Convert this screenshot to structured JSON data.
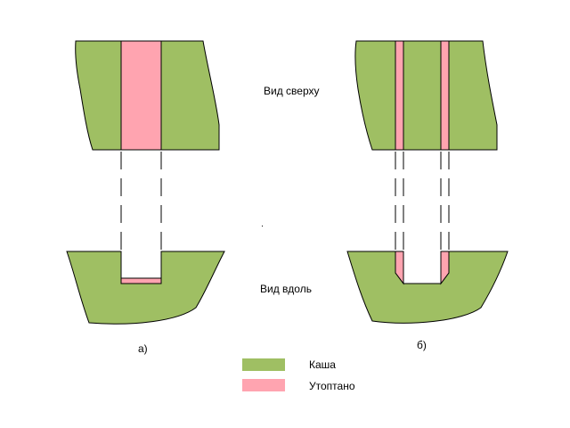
{
  "colors": {
    "kasha": "#9fbf63",
    "utoptano": "#ffa4b0",
    "outline": "#000000"
  },
  "labels": {
    "top_view": "Вид сверху",
    "side_view": "Вид вдоль",
    "panel_a": "а)",
    "panel_b": "б)"
  },
  "legend": [
    {
      "label": "Каша",
      "color": "#9fbf63"
    },
    {
      "label": "Утоптано",
      "color": "#ffa4b0"
    }
  ]
}
